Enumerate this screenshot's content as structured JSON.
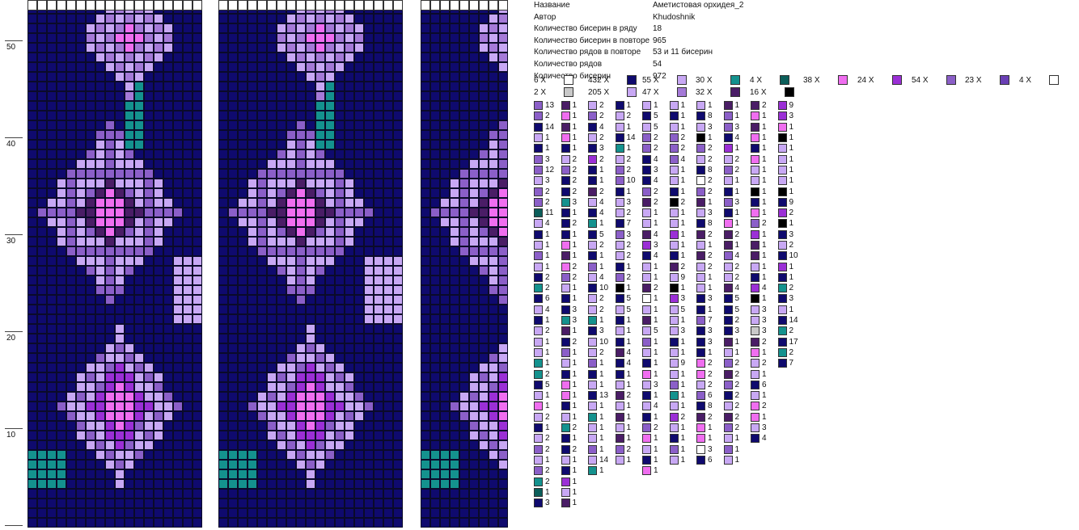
{
  "row_labels": [
    "50",
    "40",
    "30",
    "20",
    "10"
  ],
  "info": [
    {
      "key": "Название",
      "value": "Аметистовая орхидея_2"
    },
    {
      "key": "Автор",
      "value": "Khudoshnik"
    },
    {
      "key": "Количество бисерин в ряду",
      "value": "18"
    },
    {
      "key": "Количество бисерин в повторе",
      "value": "965"
    },
    {
      "key": "Количество рядов в повторе",
      "value": "53 и 11 бисерин"
    },
    {
      "key": "Количество рядов",
      "value": "54"
    },
    {
      "key": "Количество бисерин",
      "value": "972"
    }
  ],
  "colors": {
    "N": "#0f0a6e",
    "L": "#c8a8f4",
    "M": "#8b5fc8",
    "P": "#f06ef0",
    "V": "#9b2fd6",
    "T": "#14928e",
    "G": "#0b5e5a",
    "D": "#4a1d66",
    "W": "#ffffff",
    "S": "#c9c9c9",
    "K": "#000000",
    "B": "#6a3fb5",
    "Q": "#a57ad8"
  },
  "legend": [
    {
      "count": "6 X",
      "color": "W"
    },
    {
      "count": "432 X",
      "color": "N"
    },
    {
      "count": "55 X",
      "color": "L"
    },
    {
      "count": "30 X",
      "color": "T"
    },
    {
      "count": "4 X",
      "color": "G"
    },
    {
      "count": "38 X",
      "color": "P"
    },
    {
      "count": "24 X",
      "color": "V"
    },
    {
      "count": "54 X",
      "color": "M"
    },
    {
      "count": "23 X",
      "color": "B"
    },
    {
      "count": "4 X",
      "color": "W"
    },
    {
      "count": "2 X",
      "color": "S"
    },
    {
      "count": "205 X",
      "color": "L"
    },
    {
      "count": "47 X",
      "color": "Q"
    },
    {
      "count": "32 X",
      "color": "D"
    },
    {
      "count": "16 X",
      "color": "K"
    }
  ],
  "sequence": [
    [
      [
        "M",
        "13"
      ],
      [
        "M",
        "2"
      ],
      [
        "N",
        "14"
      ],
      [
        "L",
        "1"
      ],
      [
        "N",
        "1"
      ],
      [
        "M",
        "3"
      ],
      [
        "M",
        "12"
      ],
      [
        "L",
        "3"
      ],
      [
        "M",
        "2"
      ],
      [
        "M",
        "2"
      ],
      [
        "G",
        "11"
      ],
      [
        "L",
        "4"
      ],
      [
        "N",
        "1"
      ],
      [
        "L",
        "1"
      ],
      [
        "M",
        "1"
      ],
      [
        "L",
        "1"
      ],
      [
        "N",
        "2"
      ],
      [
        "T",
        "2"
      ],
      [
        "N",
        "6"
      ],
      [
        "L",
        "4"
      ],
      [
        "N",
        "1"
      ],
      [
        "L",
        "2"
      ],
      [
        "L",
        "1"
      ],
      [
        "L",
        "1"
      ],
      [
        "T",
        "1"
      ],
      [
        "T",
        "2"
      ],
      [
        "N",
        "5"
      ],
      [
        "L",
        "1"
      ],
      [
        "P",
        "1"
      ],
      [
        "L",
        "2"
      ],
      [
        "N",
        "1"
      ],
      [
        "L",
        "2"
      ],
      [
        "M",
        "2"
      ],
      [
        "L",
        "1"
      ],
      [
        "M",
        "2"
      ],
      [
        "T",
        "2"
      ],
      [
        "G",
        "1"
      ],
      [
        "N",
        "3"
      ]
    ],
    [
      [
        "D",
        "1"
      ],
      [
        "P",
        "1"
      ],
      [
        "D",
        "1"
      ],
      [
        "P",
        "1"
      ],
      [
        "N",
        "1"
      ],
      [
        "L",
        "2"
      ],
      [
        "M",
        "2"
      ],
      [
        "N",
        "2"
      ],
      [
        "N",
        "2"
      ],
      [
        "T",
        "3"
      ],
      [
        "N",
        "1"
      ],
      [
        "N",
        "2"
      ],
      [
        "N",
        "1"
      ],
      [
        "P",
        "1"
      ],
      [
        "D",
        "1"
      ],
      [
        "P",
        "2"
      ],
      [
        "M",
        "2"
      ],
      [
        "L",
        "1"
      ],
      [
        "N",
        "1"
      ],
      [
        "N",
        "3"
      ],
      [
        "T",
        "3"
      ],
      [
        "D",
        "1"
      ],
      [
        "N",
        "2"
      ],
      [
        "M",
        "1"
      ],
      [
        "L",
        "1"
      ],
      [
        "N",
        "1"
      ],
      [
        "P",
        "1"
      ],
      [
        "P",
        "1"
      ],
      [
        "N",
        "1"
      ],
      [
        "L",
        "1"
      ],
      [
        "T",
        "2"
      ],
      [
        "N",
        "1"
      ],
      [
        "N",
        "2"
      ],
      [
        "L",
        "1"
      ],
      [
        "N",
        "1"
      ],
      [
        "V",
        "1"
      ],
      [
        "L",
        "1"
      ],
      [
        "D",
        "1"
      ]
    ],
    [
      [
        "L",
        "2"
      ],
      [
        "M",
        "2"
      ],
      [
        "N",
        "4"
      ],
      [
        "L",
        "2"
      ],
      [
        "N",
        "3"
      ],
      [
        "V",
        "2"
      ],
      [
        "N",
        "1"
      ],
      [
        "N",
        "1"
      ],
      [
        "D",
        "2"
      ],
      [
        "L",
        "4"
      ],
      [
        "N",
        "4"
      ],
      [
        "T",
        "1"
      ],
      [
        "N",
        "5"
      ],
      [
        "L",
        "2"
      ],
      [
        "N",
        "1"
      ],
      [
        "M",
        "1"
      ],
      [
        "L",
        "4"
      ],
      [
        "N",
        "10"
      ],
      [
        "L",
        "2"
      ],
      [
        "L",
        "2"
      ],
      [
        "T",
        "1"
      ],
      [
        "N",
        "3"
      ],
      [
        "L",
        "10"
      ],
      [
        "L",
        "2"
      ],
      [
        "M",
        "1"
      ],
      [
        "N",
        "1"
      ],
      [
        "L",
        "1"
      ],
      [
        "N",
        "13"
      ],
      [
        "L",
        "1"
      ],
      [
        "T",
        "1"
      ],
      [
        "L",
        "1"
      ],
      [
        "L",
        "1"
      ],
      [
        "M",
        "1"
      ],
      [
        "L",
        "14"
      ],
      [
        "T",
        "1"
      ]
    ],
    [
      [
        "N",
        "1"
      ],
      [
        "L",
        "2"
      ],
      [
        "L",
        "1"
      ],
      [
        "N",
        "14"
      ],
      [
        "T",
        "1"
      ],
      [
        "L",
        "2"
      ],
      [
        "M",
        "2"
      ],
      [
        "M",
        "10"
      ],
      [
        "N",
        "1"
      ],
      [
        "L",
        "3"
      ],
      [
        "L",
        "2"
      ],
      [
        "N",
        "7"
      ],
      [
        "M",
        "3"
      ],
      [
        "L",
        "2"
      ],
      [
        "L",
        "2"
      ],
      [
        "N",
        "1"
      ],
      [
        "M",
        "2"
      ],
      [
        "K",
        "1"
      ],
      [
        "N",
        "5"
      ],
      [
        "L",
        "5"
      ],
      [
        "N",
        "1"
      ],
      [
        "L",
        "1"
      ],
      [
        "N",
        "1"
      ],
      [
        "D",
        "4"
      ],
      [
        "N",
        "4"
      ],
      [
        "N",
        "1"
      ],
      [
        "L",
        "1"
      ],
      [
        "D",
        "2"
      ],
      [
        "L",
        "1"
      ],
      [
        "D",
        "1"
      ],
      [
        "L",
        "1"
      ],
      [
        "D",
        "1"
      ],
      [
        "M",
        "2"
      ],
      [
        "L",
        "1"
      ]
    ],
    [
      [
        "L",
        "1"
      ],
      [
        "N",
        "5"
      ],
      [
        "L",
        "5"
      ],
      [
        "M",
        "2"
      ],
      [
        "M",
        "2"
      ],
      [
        "N",
        "4"
      ],
      [
        "N",
        "3"
      ],
      [
        "N",
        "4"
      ],
      [
        "M",
        "2"
      ],
      [
        "D",
        "2"
      ],
      [
        "L",
        "1"
      ],
      [
        "L",
        "1"
      ],
      [
        "D",
        "4"
      ],
      [
        "V",
        "3"
      ],
      [
        "N",
        "4"
      ],
      [
        "L",
        "1"
      ],
      [
        "L",
        "1"
      ],
      [
        "D",
        "2"
      ],
      [
        "W",
        "1"
      ],
      [
        "L",
        "1"
      ],
      [
        "D",
        "1"
      ],
      [
        "L",
        "5"
      ],
      [
        "M",
        "1"
      ],
      [
        "L",
        "1"
      ],
      [
        "N",
        "1"
      ],
      [
        "P",
        "1"
      ],
      [
        "L",
        "3"
      ],
      [
        "N",
        "1"
      ],
      [
        "L",
        "4"
      ],
      [
        "N",
        "1"
      ],
      [
        "M",
        "2"
      ],
      [
        "P",
        "1"
      ],
      [
        "L",
        "1"
      ],
      [
        "N",
        "1"
      ],
      [
        "P",
        "1"
      ]
    ],
    [
      [
        "L",
        "1"
      ],
      [
        "N",
        "1"
      ],
      [
        "L",
        "1"
      ],
      [
        "M",
        "2"
      ],
      [
        "M",
        "2"
      ],
      [
        "M",
        "4"
      ],
      [
        "L",
        "1"
      ],
      [
        "L",
        "1"
      ],
      [
        "N",
        "1"
      ],
      [
        "K",
        "2"
      ],
      [
        "L",
        "1"
      ],
      [
        "L",
        "1"
      ],
      [
        "V",
        "1"
      ],
      [
        "L",
        "1"
      ],
      [
        "N",
        "1"
      ],
      [
        "D",
        "2"
      ],
      [
        "L",
        "9"
      ],
      [
        "K",
        "1"
      ],
      [
        "V",
        "3"
      ],
      [
        "L",
        "5"
      ],
      [
        "L",
        "1"
      ],
      [
        "L",
        "3"
      ],
      [
        "N",
        "1"
      ],
      [
        "L",
        "1"
      ],
      [
        "L",
        "9"
      ],
      [
        "L",
        "1"
      ],
      [
        "M",
        "1"
      ],
      [
        "T",
        "1"
      ],
      [
        "L",
        "1"
      ],
      [
        "V",
        "2"
      ],
      [
        "L",
        "1"
      ],
      [
        "N",
        "1"
      ],
      [
        "M",
        "1"
      ],
      [
        "L",
        "1"
      ]
    ],
    [
      [
        "L",
        "1"
      ],
      [
        "N",
        "8"
      ],
      [
        "L",
        "3"
      ],
      [
        "K",
        "1"
      ],
      [
        "M",
        "2"
      ],
      [
        "L",
        "2"
      ],
      [
        "N",
        "8"
      ],
      [
        "W",
        "2"
      ],
      [
        "M",
        "2"
      ],
      [
        "D",
        "1"
      ],
      [
        "L",
        "3"
      ],
      [
        "N",
        "8"
      ],
      [
        "D",
        "2"
      ],
      [
        "L",
        "1"
      ],
      [
        "D",
        "2"
      ],
      [
        "L",
        "2"
      ],
      [
        "L",
        "1"
      ],
      [
        "L",
        "1"
      ],
      [
        "N",
        "3"
      ],
      [
        "N",
        "1"
      ],
      [
        "M",
        "7"
      ],
      [
        "N",
        "3"
      ],
      [
        "N",
        "3"
      ],
      [
        "N",
        "1"
      ],
      [
        "P",
        "2"
      ],
      [
        "P",
        "2"
      ],
      [
        "L",
        "2"
      ],
      [
        "M",
        "6"
      ],
      [
        "N",
        "8"
      ],
      [
        "D",
        "2"
      ],
      [
        "P",
        "1"
      ],
      [
        "P",
        "1"
      ],
      [
        "W",
        "3"
      ],
      [
        "N",
        "6"
      ]
    ],
    [
      [
        "D",
        "1"
      ],
      [
        "M",
        "1"
      ],
      [
        "M",
        "3"
      ],
      [
        "N",
        "4"
      ],
      [
        "V",
        "1"
      ],
      [
        "L",
        "2"
      ],
      [
        "M",
        "2"
      ],
      [
        "L",
        "1"
      ],
      [
        "N",
        "1"
      ],
      [
        "M",
        "3"
      ],
      [
        "N",
        "1"
      ],
      [
        "P",
        "1"
      ],
      [
        "D",
        "2"
      ],
      [
        "D",
        "1"
      ],
      [
        "M",
        "4"
      ],
      [
        "L",
        "2"
      ],
      [
        "L",
        "2"
      ],
      [
        "D",
        "4"
      ],
      [
        "N",
        "5"
      ],
      [
        "N",
        "5"
      ],
      [
        "N",
        "2"
      ],
      [
        "N",
        "3"
      ],
      [
        "D",
        "1"
      ],
      [
        "L",
        "1"
      ],
      [
        "M",
        "2"
      ],
      [
        "D",
        "2"
      ],
      [
        "M",
        "2"
      ],
      [
        "N",
        "2"
      ],
      [
        "L",
        "2"
      ],
      [
        "D",
        "2"
      ],
      [
        "M",
        "2"
      ],
      [
        "L",
        "1"
      ],
      [
        "M",
        "1"
      ],
      [
        "L",
        "1"
      ]
    ],
    [
      [
        "D",
        "2"
      ],
      [
        "P",
        "1"
      ],
      [
        "D",
        "1"
      ],
      [
        "P",
        "1"
      ],
      [
        "N",
        "1"
      ],
      [
        "P",
        "1"
      ],
      [
        "L",
        "1"
      ],
      [
        "L",
        "1"
      ],
      [
        "K",
        "1"
      ],
      [
        "N",
        "1"
      ],
      [
        "P",
        "1"
      ],
      [
        "M",
        "2"
      ],
      [
        "V",
        "1"
      ],
      [
        "D",
        "1"
      ],
      [
        "D",
        "1"
      ],
      [
        "L",
        "1"
      ],
      [
        "N",
        "1"
      ],
      [
        "V",
        "4"
      ],
      [
        "K",
        "1"
      ],
      [
        "L",
        "3"
      ],
      [
        "L",
        "3"
      ],
      [
        "S",
        "3"
      ],
      [
        "D",
        "2"
      ],
      [
        "P",
        "1"
      ],
      [
        "L",
        "2"
      ],
      [
        "L",
        "1"
      ],
      [
        "N",
        "6"
      ],
      [
        "L",
        "1"
      ],
      [
        "P",
        "2"
      ],
      [
        "P",
        "1"
      ],
      [
        "L",
        "3"
      ],
      [
        "N",
        "4"
      ]
    ],
    [
      [
        "V",
        "9"
      ],
      [
        "V",
        "3"
      ],
      [
        "P",
        "1"
      ],
      [
        "K",
        "1"
      ],
      [
        "L",
        "1"
      ],
      [
        "L",
        "1"
      ],
      [
        "L",
        "1"
      ],
      [
        "L",
        "1"
      ],
      [
        "K",
        "1"
      ],
      [
        "N",
        "9"
      ],
      [
        "V",
        "2"
      ],
      [
        "K",
        "1"
      ],
      [
        "N",
        "3"
      ],
      [
        "L",
        "2"
      ],
      [
        "N",
        "10"
      ],
      [
        "V",
        "1"
      ],
      [
        "N",
        "1"
      ],
      [
        "T",
        "2"
      ],
      [
        "N",
        "3"
      ],
      [
        "L",
        "1"
      ],
      [
        "N",
        "14"
      ],
      [
        "T",
        "2"
      ],
      [
        "N",
        "17"
      ],
      [
        "T",
        "2"
      ],
      [
        "N",
        "7"
      ]
    ]
  ]
}
